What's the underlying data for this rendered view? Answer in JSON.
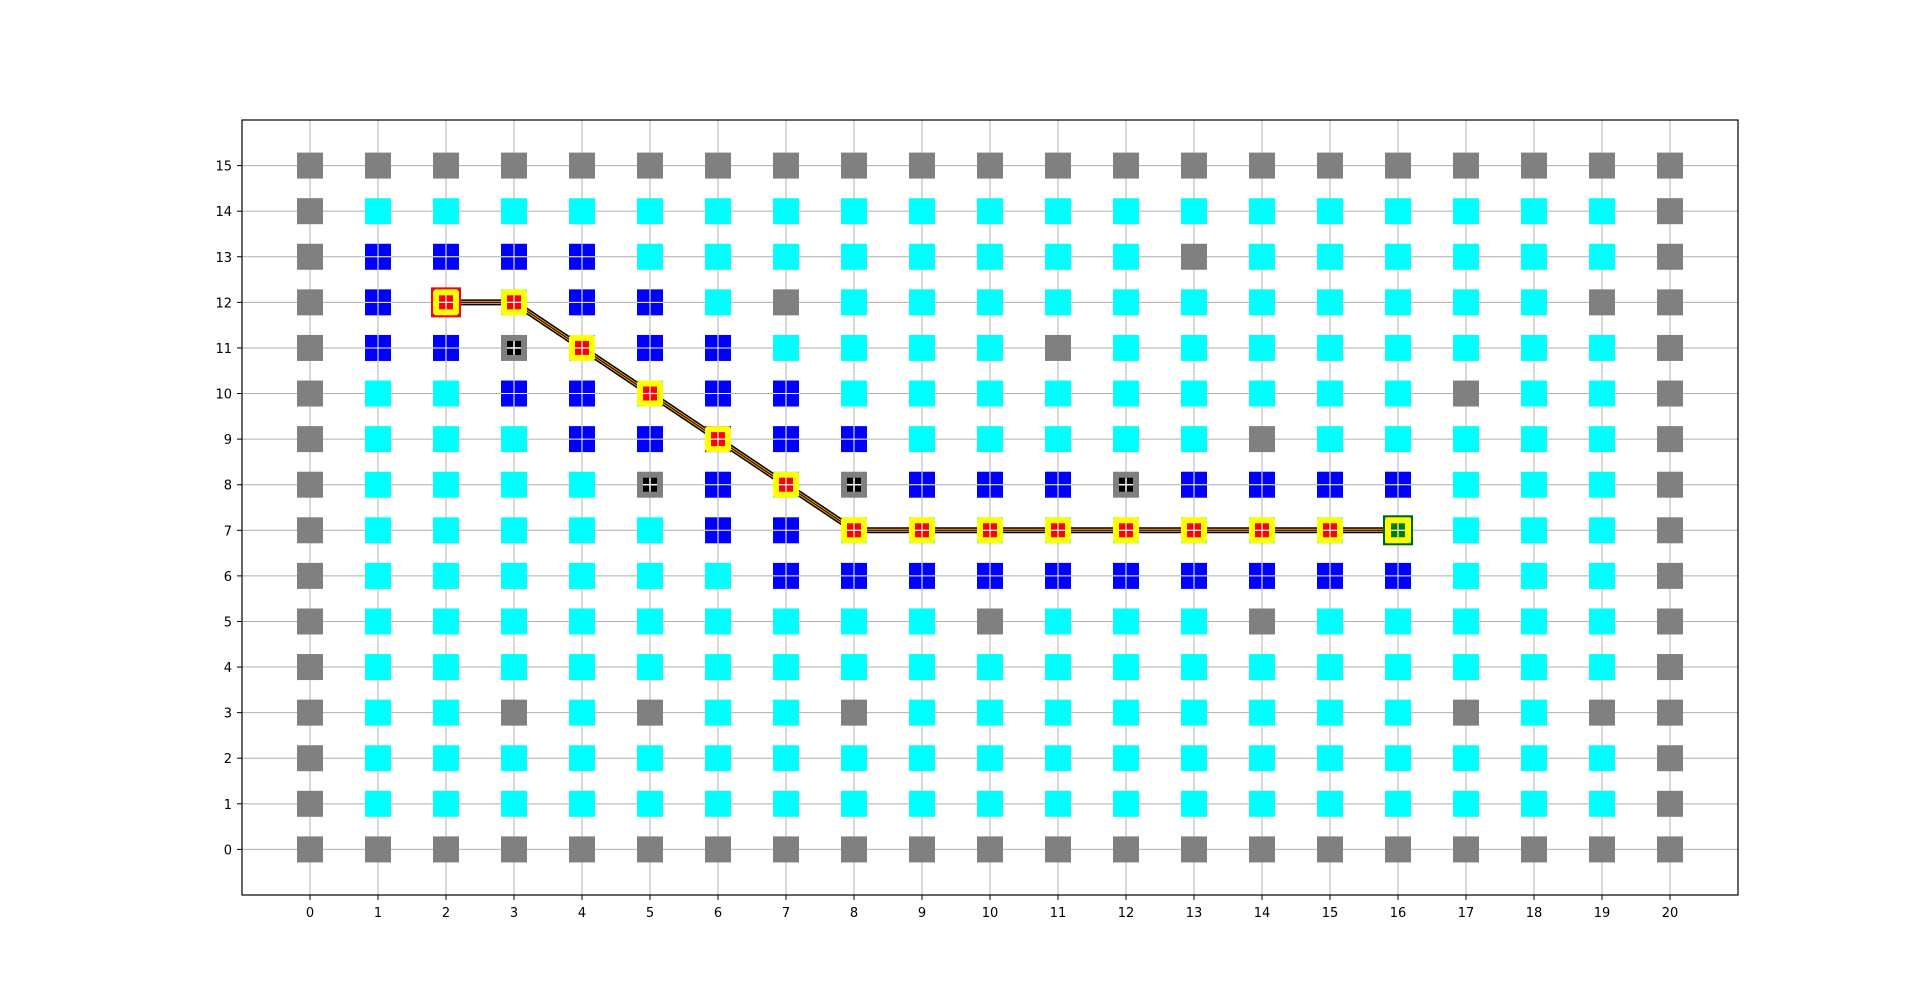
{
  "chart_data": {
    "type": "scatter",
    "title": "",
    "xlabel": "",
    "ylabel": "",
    "xlim": [
      -1,
      21
    ],
    "ylim": [
      -1,
      16
    ],
    "grid": true,
    "xticks": [
      0,
      1,
      2,
      3,
      4,
      5,
      6,
      7,
      8,
      9,
      10,
      11,
      12,
      13,
      14,
      15,
      16,
      17,
      18,
      19,
      20
    ],
    "yticks": [
      0,
      1,
      2,
      3,
      4,
      5,
      6,
      7,
      8,
      9,
      10,
      11,
      12,
      13,
      14,
      15
    ],
    "colors": {
      "open": "#00FFFF",
      "wall": "#808080",
      "visited": "#0000FF",
      "path_marker": "#FFFF00",
      "path_center": "#FF0000",
      "path_line": "#000000",
      "path_line_glow": "#FFA500",
      "start_border": "#FF0000",
      "goal_border": "#006400",
      "grid": "#B0B0B0"
    },
    "legend_codes": {
      "C": "open cell",
      "G": "wall",
      "B": "visited cell",
      "K": "blocked cell (black center)"
    },
    "grid_rows_top_to_bottom": [
      "GGGGGGGGGGGGGGGGGGGGG",
      "GCCCCCCCCCCCCCCCCCCCG",
      "GBBBBCCCCCCCCGCCCCCCG",
      "GBBCBBCGCCCCCCCCCCCGG",
      "GBBKCBBCCCCGCCCCCCCCG",
      "GCCBBCBBCCCCCCCCCGCCG",
      "GCCCBBBBBCCCCCGCCCCCG",
      "GCCCCKBCKBBBKBBBBCCCG",
      "GCCCCCBBCCCCCCCCCCCCG",
      "GCCCCCCBBBBBBBBBBCCCG",
      "GCCCCCCCCCGCCCGCCCCCG",
      "GCCCCCCCCCCCCCCCCCCCG",
      "GCCGCGCCGCCCCCCCCGCGG",
      "GCCCCCCCCCCCCCCCCCCCG",
      "GCCCCCCCCCCCCCCCCCCCG",
      "GGGGGGGGGGGGGGGGGGGGG"
    ],
    "path": [
      [
        2,
        12
      ],
      [
        3,
        12
      ],
      [
        4,
        11
      ],
      [
        5,
        10
      ],
      [
        6,
        9
      ],
      [
        7,
        8
      ],
      [
        8,
        7
      ],
      [
        9,
        7
      ],
      [
        10,
        7
      ],
      [
        11,
        7
      ],
      [
        12,
        7
      ],
      [
        13,
        7
      ],
      [
        14,
        7
      ],
      [
        15,
        7
      ],
      [
        16,
        7
      ]
    ],
    "start": [
      2,
      12
    ],
    "goal": [
      16,
      7
    ]
  }
}
